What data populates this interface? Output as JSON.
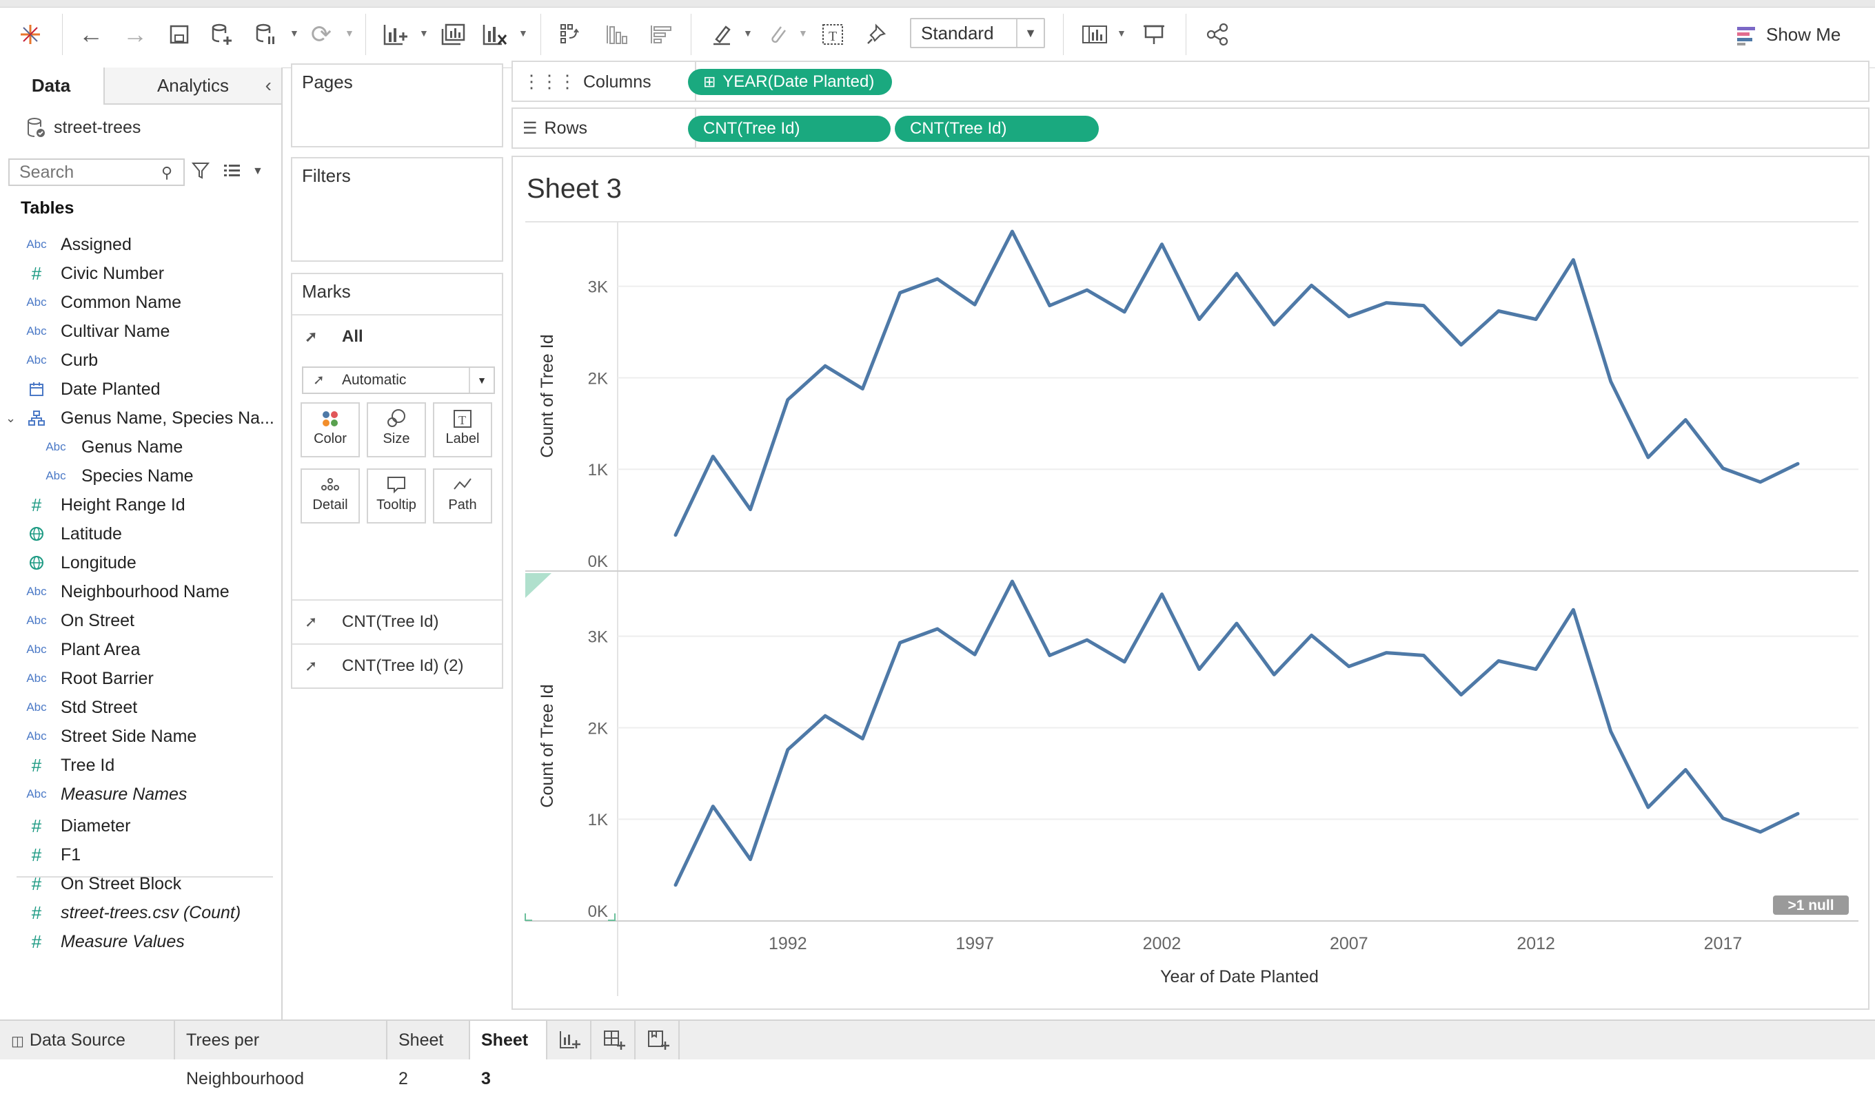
{
  "toolbar": {
    "view_mode": "Standard",
    "show_me": "Show Me"
  },
  "data_pane": {
    "tabs": [
      "Data",
      "Analytics"
    ],
    "datasource": "street-trees",
    "search_placeholder": "Search",
    "tables_heading": "Tables",
    "fields": [
      {
        "type": "Abc",
        "name": "Assigned"
      },
      {
        "type": "#",
        "name": "Civic Number"
      },
      {
        "type": "Abc",
        "name": "Common Name"
      },
      {
        "type": "Abc",
        "name": "Cultivar Name"
      },
      {
        "type": "Abc",
        "name": "Curb"
      },
      {
        "type": "date",
        "name": "Date Planted"
      },
      {
        "type": "hierarchy",
        "name": "Genus Name, Species Na..."
      },
      {
        "type": "Abc",
        "name": "Genus Name"
      },
      {
        "type": "Abc",
        "name": "Species Name"
      },
      {
        "type": "#",
        "name": "Height Range Id"
      },
      {
        "type": "geo",
        "name": "Latitude"
      },
      {
        "type": "geo",
        "name": "Longitude"
      },
      {
        "type": "Abc",
        "name": "Neighbourhood Name"
      },
      {
        "type": "Abc",
        "name": "On Street"
      },
      {
        "type": "Abc",
        "name": "Plant Area"
      },
      {
        "type": "Abc",
        "name": "Root Barrier"
      },
      {
        "type": "Abc",
        "name": "Std Street"
      },
      {
        "type": "Abc",
        "name": "Street Side Name"
      },
      {
        "type": "#",
        "name": "Tree Id"
      },
      {
        "type": "Abc",
        "name": "Measure Names"
      }
    ],
    "measures": [
      {
        "type": "#",
        "name": "Diameter"
      },
      {
        "type": "#",
        "name": "F1"
      },
      {
        "type": "#",
        "name": "On Street Block"
      },
      {
        "type": "#",
        "name": "street-trees.csv (Count)"
      },
      {
        "type": "#",
        "name": "Measure Values"
      }
    ]
  },
  "cards": {
    "pages": "Pages",
    "filters": "Filters",
    "marks": "Marks",
    "marks_all": "All",
    "mark_type": "Automatic",
    "mark_buttons": [
      "Color",
      "Size",
      "Label",
      "Detail",
      "Tooltip",
      "Path"
    ],
    "mark_rows": [
      "CNT(Tree Id)",
      "CNT(Tree Id) (2)"
    ]
  },
  "shelves": {
    "columns_label": "Columns",
    "rows_label": "Rows",
    "columns_pills": [
      "YEAR(Date Planted)"
    ],
    "rows_pills": [
      "CNT(Tree Id)",
      "CNT(Tree Id)"
    ]
  },
  "sheet_title": "Sheet 3",
  "null_badge": ">1 null",
  "chart_data": {
    "type": "line",
    "panes": 2,
    "x": [
      1989,
      1990,
      1991,
      1992,
      1993,
      1994,
      1995,
      1996,
      1997,
      1998,
      1999,
      2000,
      2001,
      2002,
      2003,
      2004,
      2005,
      2006,
      2007,
      2008,
      2009,
      2010,
      2011,
      2012,
      2013,
      2014,
      2015,
      2016,
      2017,
      2018,
      2019
    ],
    "series": [
      {
        "values": [
          280,
          1140,
          560,
          1760,
          2130,
          1880,
          2930,
          3080,
          2800,
          3600,
          2790,
          2960,
          2720,
          3460,
          2640,
          3140,
          2580,
          3010,
          2670,
          2820,
          2790,
          2360,
          2730,
          2640,
          3290,
          1960,
          1130,
          1540,
          1010,
          860,
          1060
        ]
      }
    ],
    "color": "#4e79a7",
    "xlabel": "Year of Date Planted",
    "ylabel": "Count of Tree Id",
    "x_ticks": [
      "1992",
      "1997",
      "2002",
      "2007",
      "2012",
      "2017"
    ],
    "y_ticks": [
      "0K",
      "1K",
      "2K",
      "3K"
    ],
    "ylim": [
      0,
      3600
    ],
    "grid": true
  },
  "bottom_tabs": [
    "Data Source",
    "Trees per Neighbourhood",
    "Sheet 2",
    "Sheet 3"
  ]
}
